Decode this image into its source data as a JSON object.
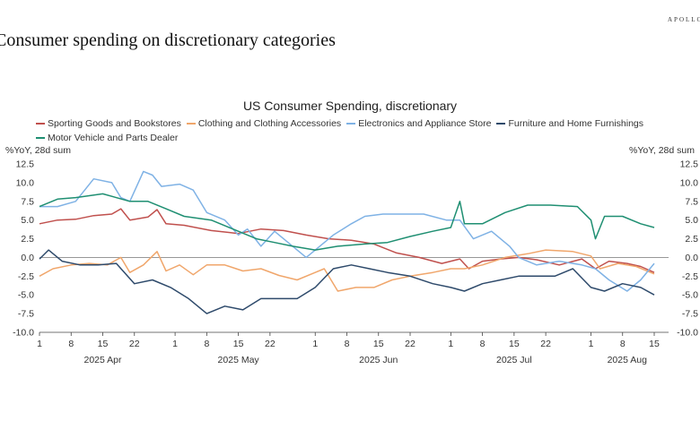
{
  "brand": "APOLLO",
  "headline": "Consumer spending on discretionary categories",
  "chart_data": {
    "type": "line",
    "title": "US Consumer Spending, discretionary",
    "ylabel_left": "%YoY, 28d sum",
    "ylabel_right": "%YoY, 28d sum",
    "ylim": [
      -10,
      12.5
    ],
    "yticks": [
      -10,
      -7.5,
      -5,
      -2.5,
      0,
      2.5,
      5,
      7.5,
      10,
      12.5
    ],
    "ytick_labels": [
      "-10.0",
      "-7.5",
      "-5.0",
      "-2.5",
      "0.0",
      "2.5",
      "5.0",
      "7.5",
      "10.0",
      "12.5"
    ],
    "x_domain": [
      "2025-04-01",
      "2025-08-15"
    ],
    "x_ticks": [
      {
        "date": "2025-04-01",
        "label": "1"
      },
      {
        "date": "2025-04-08",
        "label": "8"
      },
      {
        "date": "2025-04-15",
        "label": "15"
      },
      {
        "date": "2025-04-22",
        "label": "22"
      },
      {
        "date": "2025-05-01",
        "label": "1"
      },
      {
        "date": "2025-05-08",
        "label": "8"
      },
      {
        "date": "2025-05-15",
        "label": "15"
      },
      {
        "date": "2025-05-22",
        "label": "22"
      },
      {
        "date": "2025-06-01",
        "label": "1"
      },
      {
        "date": "2025-06-08",
        "label": "8"
      },
      {
        "date": "2025-06-15",
        "label": "15"
      },
      {
        "date": "2025-06-22",
        "label": "22"
      },
      {
        "date": "2025-07-01",
        "label": "1"
      },
      {
        "date": "2025-07-08",
        "label": "8"
      },
      {
        "date": "2025-07-15",
        "label": "15"
      },
      {
        "date": "2025-07-22",
        "label": "22"
      },
      {
        "date": "2025-08-01",
        "label": "1"
      },
      {
        "date": "2025-08-08",
        "label": "8"
      },
      {
        "date": "2025-08-15",
        "label": "15"
      }
    ],
    "months": [
      {
        "label": "2025 Apr",
        "date": "2025-04-15"
      },
      {
        "label": "2025 May",
        "date": "2025-05-15"
      },
      {
        "label": "2025 Jun",
        "date": "2025-06-15"
      },
      {
        "label": "2025 Jul",
        "date": "2025-07-15"
      },
      {
        "label": "2025 Aug",
        "date": "2025-08-09"
      }
    ],
    "grid": false,
    "legend_position": "top",
    "series": [
      {
        "name": "Sporting Goods and Bookstores",
        "color": "#c0504d",
        "points": [
          [
            "2025-04-01",
            4.5
          ],
          [
            "2025-04-05",
            5.0
          ],
          [
            "2025-04-09",
            5.1
          ],
          [
            "2025-04-13",
            5.6
          ],
          [
            "2025-04-17",
            5.8
          ],
          [
            "2025-04-19",
            6.5
          ],
          [
            "2025-04-21",
            5.0
          ],
          [
            "2025-04-25",
            5.4
          ],
          [
            "2025-04-27",
            6.4
          ],
          [
            "2025-04-29",
            4.5
          ],
          [
            "2025-05-03",
            4.3
          ],
          [
            "2025-05-09",
            3.6
          ],
          [
            "2025-05-15",
            3.2
          ],
          [
            "2025-05-20",
            3.8
          ],
          [
            "2025-05-25",
            3.6
          ],
          [
            "2025-05-30",
            3.0
          ],
          [
            "2025-06-04",
            2.5
          ],
          [
            "2025-06-09",
            2.3
          ],
          [
            "2025-06-14",
            1.8
          ],
          [
            "2025-06-19",
            0.6
          ],
          [
            "2025-06-24",
            0.0
          ],
          [
            "2025-06-29",
            -0.8
          ],
          [
            "2025-07-01",
            -0.5
          ],
          [
            "2025-07-03",
            -0.2
          ],
          [
            "2025-07-05",
            -1.5
          ],
          [
            "2025-07-08",
            -0.5
          ],
          [
            "2025-07-12",
            -0.2
          ],
          [
            "2025-07-16",
            0.0
          ],
          [
            "2025-07-20",
            -0.3
          ],
          [
            "2025-07-25",
            -1.0
          ],
          [
            "2025-07-30",
            -0.2
          ],
          [
            "2025-08-02",
            -1.5
          ],
          [
            "2025-08-05",
            -0.5
          ],
          [
            "2025-08-09",
            -0.8
          ],
          [
            "2025-08-12",
            -1.2
          ],
          [
            "2025-08-15",
            -2.0
          ]
        ]
      },
      {
        "name": "Clothing and Clothing Accessories",
        "color": "#f0a66b",
        "points": [
          [
            "2025-04-01",
            -2.5
          ],
          [
            "2025-04-04",
            -1.5
          ],
          [
            "2025-04-08",
            -1.0
          ],
          [
            "2025-04-12",
            -0.8
          ],
          [
            "2025-04-16",
            -1.0
          ],
          [
            "2025-04-19",
            0.0
          ],
          [
            "2025-04-21",
            -2.0
          ],
          [
            "2025-04-24",
            -1.0
          ],
          [
            "2025-04-27",
            0.8
          ],
          [
            "2025-04-29",
            -1.8
          ],
          [
            "2025-05-02",
            -1.0
          ],
          [
            "2025-05-05",
            -2.3
          ],
          [
            "2025-05-08",
            -1.0
          ],
          [
            "2025-05-12",
            -1.0
          ],
          [
            "2025-05-16",
            -1.8
          ],
          [
            "2025-05-20",
            -1.5
          ],
          [
            "2025-05-24",
            -2.4
          ],
          [
            "2025-05-28",
            -3.0
          ],
          [
            "2025-06-01",
            -2.0
          ],
          [
            "2025-06-03",
            -1.5
          ],
          [
            "2025-06-06",
            -4.5
          ],
          [
            "2025-06-10",
            -4.0
          ],
          [
            "2025-06-14",
            -4.0
          ],
          [
            "2025-06-18",
            -3.0
          ],
          [
            "2025-06-22",
            -2.5
          ],
          [
            "2025-06-27",
            -2.0
          ],
          [
            "2025-07-01",
            -1.5
          ],
          [
            "2025-07-04",
            -1.5
          ],
          [
            "2025-07-08",
            -1.0
          ],
          [
            "2025-07-13",
            0.0
          ],
          [
            "2025-07-18",
            0.5
          ],
          [
            "2025-07-22",
            1.0
          ],
          [
            "2025-07-28",
            0.8
          ],
          [
            "2025-08-01",
            0.2
          ],
          [
            "2025-08-03",
            -1.5
          ],
          [
            "2025-08-07",
            -0.8
          ],
          [
            "2025-08-11",
            -1.2
          ],
          [
            "2025-08-15",
            -2.2
          ]
        ]
      },
      {
        "name": "Electronics and Appliance Store",
        "color": "#7fb2e5",
        "points": [
          [
            "2025-04-01",
            6.8
          ],
          [
            "2025-04-05",
            6.8
          ],
          [
            "2025-04-09",
            7.5
          ],
          [
            "2025-04-13",
            10.5
          ],
          [
            "2025-04-17",
            10.0
          ],
          [
            "2025-04-19",
            8.0
          ],
          [
            "2025-04-21",
            7.5
          ],
          [
            "2025-04-24",
            11.5
          ],
          [
            "2025-04-26",
            11.0
          ],
          [
            "2025-04-28",
            9.5
          ],
          [
            "2025-05-02",
            9.8
          ],
          [
            "2025-05-05",
            9.0
          ],
          [
            "2025-05-08",
            6.0
          ],
          [
            "2025-05-12",
            5.0
          ],
          [
            "2025-05-15",
            3.0
          ],
          [
            "2025-05-17",
            3.8
          ],
          [
            "2025-05-20",
            1.5
          ],
          [
            "2025-05-23",
            3.5
          ],
          [
            "2025-05-27",
            1.5
          ],
          [
            "2025-05-30",
            0.0
          ],
          [
            "2025-06-02",
            1.5
          ],
          [
            "2025-06-05",
            3.0
          ],
          [
            "2025-06-09",
            4.5
          ],
          [
            "2025-06-12",
            5.5
          ],
          [
            "2025-06-16",
            5.8
          ],
          [
            "2025-06-20",
            5.8
          ],
          [
            "2025-06-25",
            5.8
          ],
          [
            "2025-06-30",
            5.0
          ],
          [
            "2025-07-03",
            5.0
          ],
          [
            "2025-07-06",
            2.5
          ],
          [
            "2025-07-10",
            3.5
          ],
          [
            "2025-07-14",
            1.5
          ],
          [
            "2025-07-16",
            0.0
          ],
          [
            "2025-07-20",
            -1.0
          ],
          [
            "2025-07-25",
            -0.5
          ],
          [
            "2025-07-30",
            -1.0
          ],
          [
            "2025-08-02",
            -1.5
          ],
          [
            "2025-08-05",
            -3.0
          ],
          [
            "2025-08-09",
            -4.5
          ],
          [
            "2025-08-12",
            -3.0
          ],
          [
            "2025-08-15",
            -0.8
          ]
        ]
      },
      {
        "name": "Furniture and Home Furnishings",
        "color": "#2e4a6b",
        "points": [
          [
            "2025-04-01",
            -0.2
          ],
          [
            "2025-04-03",
            1.0
          ],
          [
            "2025-04-06",
            -0.5
          ],
          [
            "2025-04-10",
            -1.0
          ],
          [
            "2025-04-14",
            -1.0
          ],
          [
            "2025-04-18",
            -0.8
          ],
          [
            "2025-04-22",
            -3.5
          ],
          [
            "2025-04-26",
            -3.0
          ],
          [
            "2025-04-30",
            -4.0
          ],
          [
            "2025-05-04",
            -5.5
          ],
          [
            "2025-05-08",
            -7.5
          ],
          [
            "2025-05-12",
            -6.5
          ],
          [
            "2025-05-16",
            -7.0
          ],
          [
            "2025-05-20",
            -5.5
          ],
          [
            "2025-05-24",
            -5.5
          ],
          [
            "2025-05-28",
            -5.5
          ],
          [
            "2025-06-01",
            -4.0
          ],
          [
            "2025-06-05",
            -1.5
          ],
          [
            "2025-06-09",
            -1.0
          ],
          [
            "2025-06-13",
            -1.5
          ],
          [
            "2025-06-17",
            -2.0
          ],
          [
            "2025-06-22",
            -2.5
          ],
          [
            "2025-06-27",
            -3.5
          ],
          [
            "2025-07-01",
            -4.0
          ],
          [
            "2025-07-04",
            -4.5
          ],
          [
            "2025-07-08",
            -3.5
          ],
          [
            "2025-07-12",
            -3.0
          ],
          [
            "2025-07-16",
            -2.5
          ],
          [
            "2025-07-20",
            -2.5
          ],
          [
            "2025-07-24",
            -2.5
          ],
          [
            "2025-07-28",
            -1.5
          ],
          [
            "2025-08-01",
            -4.0
          ],
          [
            "2025-08-04",
            -4.5
          ],
          [
            "2025-08-08",
            -3.5
          ],
          [
            "2025-08-12",
            -4.0
          ],
          [
            "2025-08-15",
            -5.0
          ]
        ]
      },
      {
        "name": "Motor Vehicle and Parts Dealer",
        "color": "#1f8f72",
        "points": [
          [
            "2025-04-01",
            6.8
          ],
          [
            "2025-04-05",
            7.8
          ],
          [
            "2025-04-09",
            8.0
          ],
          [
            "2025-04-15",
            8.5
          ],
          [
            "2025-04-21",
            7.5
          ],
          [
            "2025-04-25",
            7.5
          ],
          [
            "2025-04-29",
            6.5
          ],
          [
            "2025-05-03",
            5.5
          ],
          [
            "2025-05-09",
            5.0
          ],
          [
            "2025-05-15",
            3.5
          ],
          [
            "2025-05-19",
            2.5
          ],
          [
            "2025-05-23",
            2.0
          ],
          [
            "2025-05-27",
            1.5
          ],
          [
            "2025-06-01",
            1.0
          ],
          [
            "2025-06-06",
            1.5
          ],
          [
            "2025-06-12",
            1.8
          ],
          [
            "2025-06-17",
            2.0
          ],
          [
            "2025-06-22",
            2.8
          ],
          [
            "2025-06-27",
            3.5
          ],
          [
            "2025-07-01",
            4.0
          ],
          [
            "2025-07-03",
            7.5
          ],
          [
            "2025-07-04",
            4.5
          ],
          [
            "2025-07-08",
            4.5
          ],
          [
            "2025-07-13",
            6.0
          ],
          [
            "2025-07-18",
            7.0
          ],
          [
            "2025-07-23",
            7.0
          ],
          [
            "2025-07-29",
            6.8
          ],
          [
            "2025-08-01",
            5.0
          ],
          [
            "2025-08-02",
            2.5
          ],
          [
            "2025-08-04",
            5.5
          ],
          [
            "2025-08-08",
            5.5
          ],
          [
            "2025-08-12",
            4.5
          ],
          [
            "2025-08-15",
            4.0
          ]
        ]
      }
    ]
  }
}
